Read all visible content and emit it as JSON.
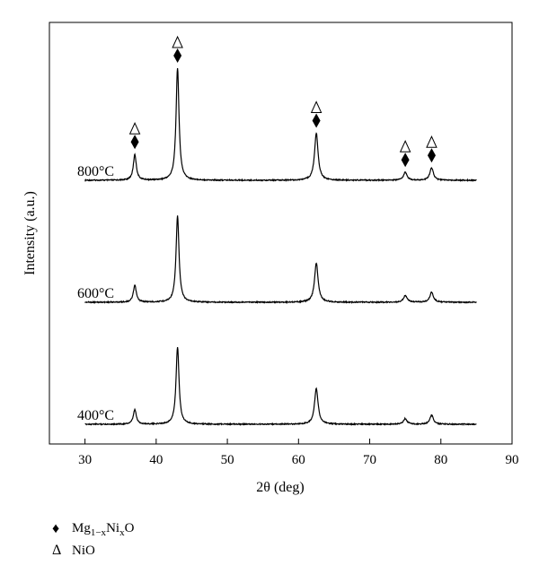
{
  "chart_data": {
    "type": "line",
    "xlabel": "2θ (deg)",
    "ylabel": "Intensity (a.u.)",
    "xlim": [
      25,
      90
    ],
    "xticks": [
      30,
      40,
      50,
      60,
      70,
      80,
      90
    ],
    "y_axis_ticks": false,
    "grid": false,
    "series": [
      {
        "name": "800°C",
        "x_range": [
          30,
          85
        ],
        "peaks": [
          {
            "x": 37.0,
            "height": 0.23
          },
          {
            "x": 43.0,
            "height": 1.0
          },
          {
            "x": 62.5,
            "height": 0.42
          },
          {
            "x": 75.0,
            "height": 0.07
          },
          {
            "x": 78.7,
            "height": 0.11
          }
        ]
      },
      {
        "name": "600°C",
        "x_range": [
          30,
          85
        ],
        "peaks": [
          {
            "x": 37.0,
            "height": 0.15
          },
          {
            "x": 43.0,
            "height": 0.77
          },
          {
            "x": 62.5,
            "height": 0.35
          },
          {
            "x": 75.0,
            "height": 0.06
          },
          {
            "x": 78.7,
            "height": 0.09
          }
        ]
      },
      {
        "name": "400°C",
        "x_range": [
          30,
          85
        ],
        "peaks": [
          {
            "x": 37.0,
            "height": 0.13
          },
          {
            "x": 43.0,
            "height": 0.69
          },
          {
            "x": 62.5,
            "height": 0.32
          },
          {
            "x": 75.0,
            "height": 0.05
          },
          {
            "x": 78.7,
            "height": 0.08
          }
        ]
      }
    ],
    "annotations": [
      {
        "x": 37.0,
        "symbols": [
          "NiO",
          "Mg1-xNixO"
        ]
      },
      {
        "x": 43.0,
        "symbols": [
          "NiO",
          "Mg1-xNixO"
        ]
      },
      {
        "x": 62.5,
        "symbols": [
          "NiO",
          "Mg1-xNixO"
        ]
      },
      {
        "x": 75.0,
        "symbols": [
          "NiO",
          "Mg1-xNixO"
        ]
      },
      {
        "x": 78.7,
        "symbols": [
          "NiO",
          "Mg1-xNixO"
        ]
      }
    ],
    "legend": {
      "placement": "bottom-left",
      "entries": [
        {
          "symbol": "♦",
          "label_main": "Mg",
          "label_sub1": "1−x",
          "label_mid": "Ni",
          "label_sub2": "x",
          "label_end": "O"
        },
        {
          "symbol": "Δ",
          "label_main": "NiO"
        }
      ]
    }
  }
}
